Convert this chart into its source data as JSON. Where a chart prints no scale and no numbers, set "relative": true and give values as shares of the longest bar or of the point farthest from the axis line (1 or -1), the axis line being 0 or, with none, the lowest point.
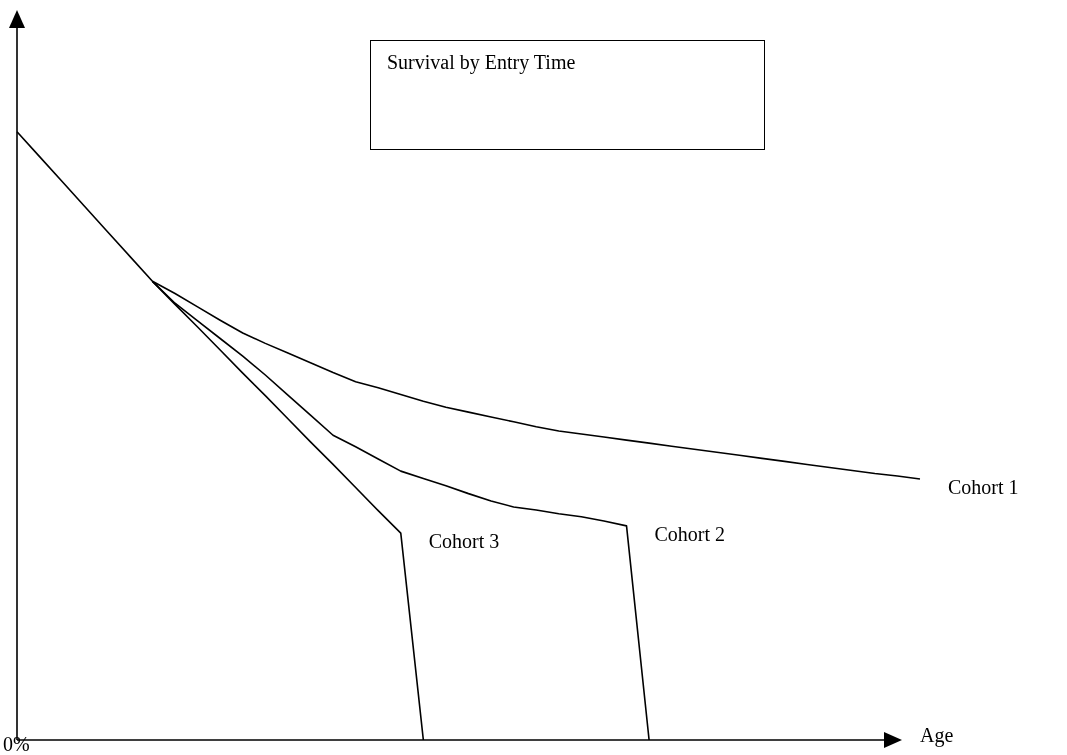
{
  "chart_data": {
    "type": "line",
    "title": "Survival by Entry Time",
    "xlabel": "Age",
    "relative": true,
    "marker": "none",
    "line_style": "solid",
    "annotations": [
      "0%"
    ],
    "categories": [
      null,
      null,
      null,
      null,
      null,
      null,
      null,
      null,
      null,
      null,
      null,
      null,
      null,
      null,
      null,
      null,
      null,
      null,
      null,
      null,
      null,
      null,
      null,
      null,
      null,
      null,
      null,
      null,
      null,
      null,
      null,
      null,
      null,
      null,
      null,
      null,
      null,
      null,
      null,
      null,
      null
    ],
    "series": [
      {
        "name": "Cohort 1",
        "color": "#000000",
        "values": [
          null,
          null,
          null,
          null,
          null,
          null,
          0.754,
          0.734,
          0.712,
          0.69,
          0.669,
          0.652,
          0.636,
          0.62,
          0.604,
          0.589,
          0.579,
          0.568,
          0.557,
          0.547,
          0.539,
          0.531,
          0.523,
          0.515,
          0.508,
          0.503,
          0.498,
          0.493,
          0.488,
          0.483,
          0.478,
          0.473,
          0.468,
          0.463,
          0.458,
          0.453,
          0.448,
          0.443,
          0.438,
          0.434,
          0.429
        ]
      },
      {
        "name": "Cohort 2",
        "color": "#000000",
        "values": [
          null,
          null,
          null,
          null,
          null,
          null,
          0.754,
          0.718,
          0.689,
          0.66,
          0.631,
          0.6,
          0.567,
          0.534,
          0.501,
          0.482,
          0.462,
          0.442,
          0.43,
          0.418,
          0.405,
          0.393,
          0.383,
          0.378,
          0.372,
          0.367,
          0.36,
          0.352,
          0,
          null,
          null,
          null,
          null,
          null,
          null,
          null,
          null,
          null,
          null,
          null,
          null
        ]
      },
      {
        "name": "Cohort 3",
        "color": "#000000",
        "values": [
          1,
          0.959,
          0.918,
          0.877,
          0.836,
          0.795,
          0.754,
          0.716,
          0.679,
          0.641,
          0.603,
          0.566,
          0.528,
          0.49,
          0.453,
          0.415,
          0.377,
          0.34,
          0,
          null,
          null,
          null,
          null,
          null,
          null,
          null,
          null,
          null,
          null,
          null,
          null,
          null,
          null,
          null,
          null,
          null,
          null,
          null,
          null,
          null,
          null
        ]
      }
    ]
  }
}
